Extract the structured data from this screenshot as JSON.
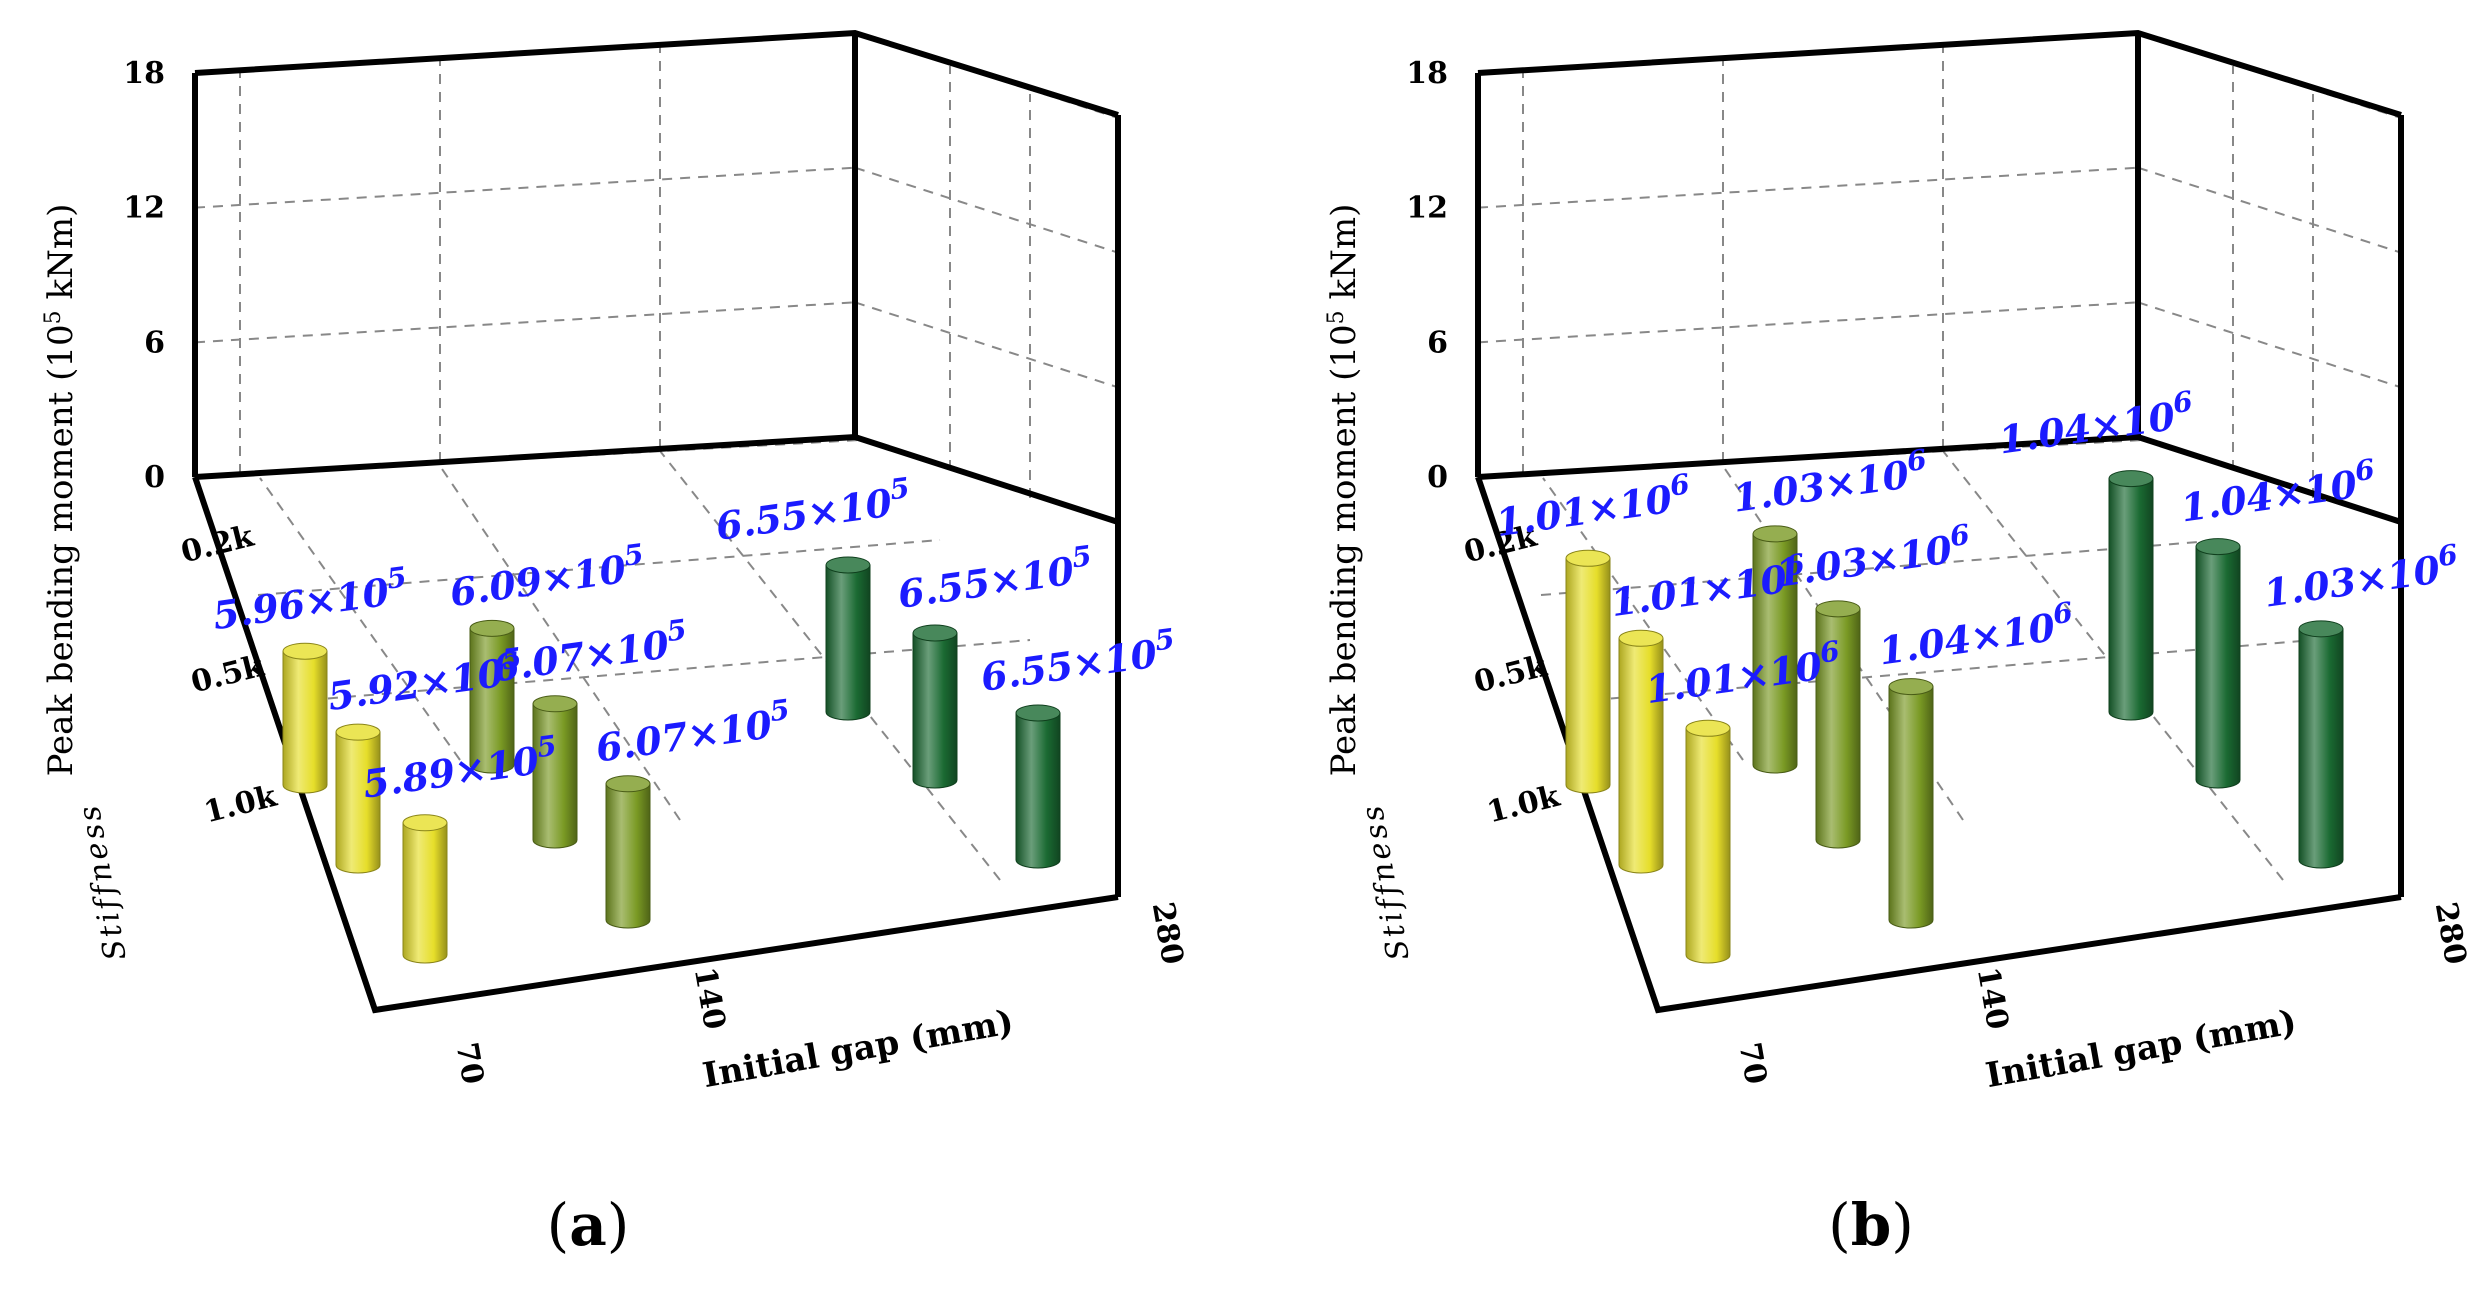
{
  "chart_data": [
    {
      "type": "bar3d",
      "panel_label": "a",
      "ylabel": "Peak bending moment (10",
      "ylabel_sup": "5",
      "ylabel_unit": " kNm)",
      "xlabel": "Initial gap (mm)",
      "zlabel": "Stiffness",
      "yticks": [
        "0",
        "6",
        "12",
        "18"
      ],
      "ylim": [
        0,
        18
      ],
      "gap_ticks": [
        "70",
        "140",
        "280"
      ],
      "stiffness_ticks": [
        "0.2k",
        "0.5k",
        "1.0k"
      ],
      "bars": [
        {
          "gap": "70",
          "stiffness": "0.2k",
          "value": 5.96,
          "label": "5.96×10",
          "exp": "5",
          "color": "#e6de2a"
        },
        {
          "gap": "70",
          "stiffness": "0.5k",
          "value": 5.92,
          "label": "5.92×10",
          "exp": "5",
          "color": "#e6de2a"
        },
        {
          "gap": "70",
          "stiffness": "1.0k",
          "value": 5.89,
          "label": "5.89×10",
          "exp": "5",
          "color": "#e6de2a"
        },
        {
          "gap": "140",
          "stiffness": "0.2k",
          "value": 6.09,
          "label": "6.09×10",
          "exp": "5",
          "color": "#7a9a24"
        },
        {
          "gap": "140",
          "stiffness": "0.5k",
          "value": 6.07,
          "label": "6.07×10",
          "exp": "5",
          "color": "#7a9a24"
        },
        {
          "gap": "140",
          "stiffness": "1.0k",
          "value": 6.07,
          "label": "6.07×10",
          "exp": "5",
          "color": "#7a9a24"
        },
        {
          "gap": "280",
          "stiffness": "0.2k",
          "value": 6.55,
          "label": "6.55×10",
          "exp": "5",
          "color": "#1a6a32"
        },
        {
          "gap": "280",
          "stiffness": "0.5k",
          "value": 6.55,
          "label": "6.55×10",
          "exp": "5",
          "color": "#1a6a32"
        },
        {
          "gap": "280",
          "stiffness": "1.0k",
          "value": 6.55,
          "label": "6.55×10",
          "exp": "5",
          "color": "#1a6a32"
        }
      ]
    },
    {
      "type": "bar3d",
      "panel_label": "b",
      "ylabel": "Peak bending moment (10",
      "ylabel_sup": "5",
      "ylabel_unit": " kNm)",
      "xlabel": "Initial gap (mm)",
      "zlabel": "Stiffness",
      "yticks": [
        "0",
        "6",
        "12",
        "18"
      ],
      "ylim": [
        0,
        18
      ],
      "gap_ticks": [
        "70",
        "140",
        "280"
      ],
      "stiffness_ticks": [
        "0.2k",
        "0.5k",
        "1.0k"
      ],
      "bars": [
        {
          "gap": "70",
          "stiffness": "0.2k",
          "value": 10.1,
          "label": "1.01×10",
          "exp": "6",
          "color": "#e6de2a"
        },
        {
          "gap": "70",
          "stiffness": "0.5k",
          "value": 10.1,
          "label": "1.01×10",
          "exp": "6",
          "color": "#e6de2a"
        },
        {
          "gap": "70",
          "stiffness": "1.0k",
          "value": 10.1,
          "label": "1.01×10",
          "exp": "6",
          "color": "#e6de2a"
        },
        {
          "gap": "140",
          "stiffness": "0.2k",
          "value": 10.3,
          "label": "1.03×10",
          "exp": "6",
          "color": "#7a9a24"
        },
        {
          "gap": "140",
          "stiffness": "0.5k",
          "value": 10.3,
          "label": "1.03×10",
          "exp": "6",
          "color": "#7a9a24"
        },
        {
          "gap": "140",
          "stiffness": "1.0k",
          "value": 10.4,
          "label": "1.04×10",
          "exp": "6",
          "color": "#7a9a24"
        },
        {
          "gap": "280",
          "stiffness": "0.2k",
          "value": 10.4,
          "label": "1.04×10",
          "exp": "6",
          "color": "#1a6a32"
        },
        {
          "gap": "280",
          "stiffness": "0.5k",
          "value": 10.4,
          "label": "1.04×10",
          "exp": "6",
          "color": "#1a6a32"
        },
        {
          "gap": "280",
          "stiffness": "1.0k",
          "value": 10.3,
          "label": "1.03×10",
          "exp": "6",
          "color": "#1a6a32"
        }
      ]
    }
  ]
}
